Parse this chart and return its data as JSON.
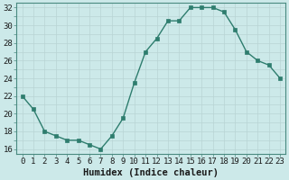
{
  "x": [
    0,
    1,
    2,
    3,
    4,
    5,
    6,
    7,
    8,
    9,
    10,
    11,
    12,
    13,
    14,
    15,
    16,
    17,
    18,
    19,
    20,
    21,
    22,
    23
  ],
  "y": [
    22,
    20.5,
    18,
    17.5,
    17,
    17,
    16.5,
    16,
    17.5,
    19.5,
    23.5,
    27,
    28.5,
    30.5,
    30.5,
    32,
    32,
    32,
    31.5,
    29.5,
    27,
    26,
    25.5,
    24
  ],
  "line_color": "#2e7d6e",
  "marker_color": "#2e7d6e",
  "bg_color": "#cce9e9",
  "grid_color_major": "#b8d4d4",
  "grid_color_minor": "#b8d4d4",
  "xlabel": "Humidex (Indice chaleur)",
  "ylim": [
    15.5,
    32.5
  ],
  "yticks": [
    16,
    18,
    20,
    22,
    24,
    26,
    28,
    30,
    32
  ],
  "xticks": [
    0,
    1,
    2,
    3,
    4,
    5,
    6,
    7,
    8,
    9,
    10,
    11,
    12,
    13,
    14,
    15,
    16,
    17,
    18,
    19,
    20,
    21,
    22,
    23
  ],
  "xtick_labels": [
    "0",
    "1",
    "2",
    "3",
    "4",
    "5",
    "6",
    "7",
    "8",
    "9",
    "10",
    "11",
    "12",
    "13",
    "14",
    "15",
    "16",
    "17",
    "18",
    "19",
    "20",
    "21",
    "22",
    "23"
  ],
  "xlabel_fontsize": 7.5,
  "tick_fontsize": 6.5
}
